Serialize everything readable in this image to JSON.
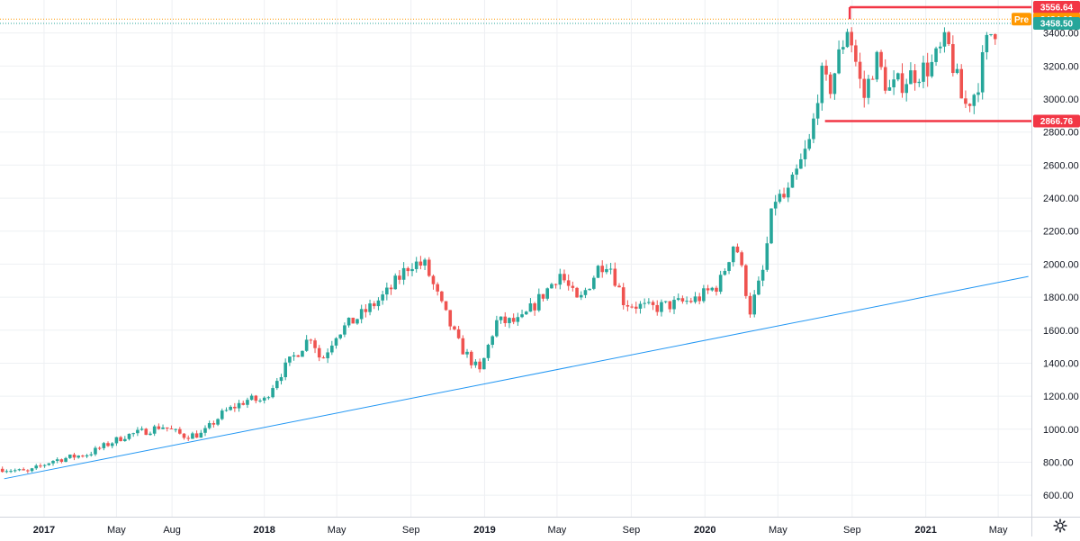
{
  "chart_data": {
    "type": "candlestick",
    "colors": {
      "up": "#26a69a",
      "down": "#ef5350",
      "grid": "#eef0f3",
      "axis_text": "#131722",
      "trendline": "#2196f3",
      "level_line": "#f23645",
      "premarket_badge": "#ff9800",
      "last_price_badge": "#26a69a",
      "level_badge": "#f23645",
      "dotted_line": "#ff9800"
    },
    "y_axis": {
      "range": [
        470,
        3600
      ],
      "ticks": [
        600,
        800,
        1000,
        1200,
        1400,
        1600,
        1800,
        2000,
        2200,
        2400,
        2600,
        2800,
        3000,
        3200,
        3400
      ],
      "tick_labels": [
        "600.00",
        "800.00",
        "1000.00",
        "1200.00",
        "1400.00",
        "1600.00",
        "1800.00",
        "2000.00",
        "2200.00",
        "2400.00",
        "2600.00",
        "2800.00",
        "3000.00",
        "3200.00",
        "3400.00"
      ]
    },
    "x_axis": {
      "range": [
        "2016-10-20",
        "2021-06-25"
      ],
      "ticks": [
        {
          "date": "2017-01-01",
          "label": "2017",
          "bold": true
        },
        {
          "date": "2017-05-01",
          "label": "May",
          "bold": false
        },
        {
          "date": "2017-08-01",
          "label": "Aug",
          "bold": false
        },
        {
          "date": "2018-01-01",
          "label": "2018",
          "bold": true
        },
        {
          "date": "2018-05-01",
          "label": "May",
          "bold": false
        },
        {
          "date": "2018-09-01",
          "label": "Sep",
          "bold": false
        },
        {
          "date": "2019-01-01",
          "label": "2019",
          "bold": true
        },
        {
          "date": "2019-05-01",
          "label": "May",
          "bold": false
        },
        {
          "date": "2019-09-01",
          "label": "Sep",
          "bold": false
        },
        {
          "date": "2020-01-01",
          "label": "2020",
          "bold": true
        },
        {
          "date": "2020-05-01",
          "label": "May",
          "bold": false
        },
        {
          "date": "2020-09-01",
          "label": "Sep",
          "bold": false
        },
        {
          "date": "2021-01-01",
          "label": "2021",
          "bold": true
        },
        {
          "date": "2021-05-01",
          "label": "May",
          "bold": false
        }
      ]
    },
    "anchors": [
      [
        "2016-10-24",
        760
      ],
      [
        "2016-12-05",
        740
      ],
      [
        "2017-01-15",
        810
      ],
      [
        "2017-03-15",
        850
      ],
      [
        "2017-05-15",
        960
      ],
      [
        "2017-06-20",
        990
      ],
      [
        "2017-07-15",
        1020
      ],
      [
        "2017-08-20",
        960
      ],
      [
        "2017-09-20",
        970
      ],
      [
        "2017-10-25",
        1100
      ],
      [
        "2017-12-05",
        1180
      ],
      [
        "2017-12-31",
        1170
      ],
      [
        "2018-01-20",
        1300
      ],
      [
        "2018-02-10",
        1400
      ],
      [
        "2018-03-20",
        1570
      ],
      [
        "2018-04-05",
        1410
      ],
      [
        "2018-04-30",
        1580
      ],
      [
        "2018-06-10",
        1690
      ],
      [
        "2018-07-25",
        1830
      ],
      [
        "2018-09-01",
        2010
      ],
      [
        "2018-09-25",
        1990
      ],
      [
        "2018-10-20",
        1760
      ],
      [
        "2018-11-20",
        1510
      ],
      [
        "2018-12-24",
        1345
      ],
      [
        "2019-01-20",
        1650
      ],
      [
        "2019-03-01",
        1650
      ],
      [
        "2019-04-20",
        1870
      ],
      [
        "2019-05-05",
        1950
      ],
      [
        "2019-06-05",
        1760
      ],
      [
        "2019-07-10",
        1990
      ],
      [
        "2019-07-25",
        2020
      ],
      [
        "2019-08-20",
        1770
      ],
      [
        "2019-10-01",
        1730
      ],
      [
        "2019-11-15",
        1760
      ],
      [
        "2019-12-20",
        1790
      ],
      [
        "2020-01-25",
        1880
      ],
      [
        "2020-02-20",
        2150
      ],
      [
        "2020-03-16",
        1720
      ],
      [
        "2020-04-05",
        1930
      ],
      [
        "2020-04-25",
        2400
      ],
      [
        "2020-05-15",
        2400
      ],
      [
        "2020-06-25",
        2760
      ],
      [
        "2020-07-10",
        3150
      ],
      [
        "2020-07-25",
        3050
      ],
      [
        "2020-08-25",
        3450
      ],
      [
        "2020-09-20",
        3000
      ],
      [
        "2020-10-10",
        3250
      ],
      [
        "2020-11-01",
        3050
      ],
      [
        "2020-12-10",
        3150
      ],
      [
        "2021-01-10",
        3200
      ],
      [
        "2021-02-05",
        3350
      ],
      [
        "2021-03-05",
        2950
      ],
      [
        "2021-03-25",
        3050
      ],
      [
        "2021-04-15",
        3380
      ],
      [
        "2021-04-30",
        3450
      ]
    ],
    "trendline": {
      "from": [
        "2016-10-27",
        700
      ],
      "to": [
        "2021-06-20",
        1925
      ]
    },
    "levels": [
      {
        "from": "2020-08-28",
        "value": 3556.64,
        "label": "3556.64",
        "step_down_to": 3484.0
      },
      {
        "from": "2020-07-18",
        "value": 2866.76,
        "label": "2866.76"
      }
    ],
    "price_tags": {
      "premarket_label": "Pre",
      "premarket_value": 3484.0,
      "premarket_text": "3484.00",
      "last_value": 3458.5,
      "last_text": "3458.50"
    }
  }
}
